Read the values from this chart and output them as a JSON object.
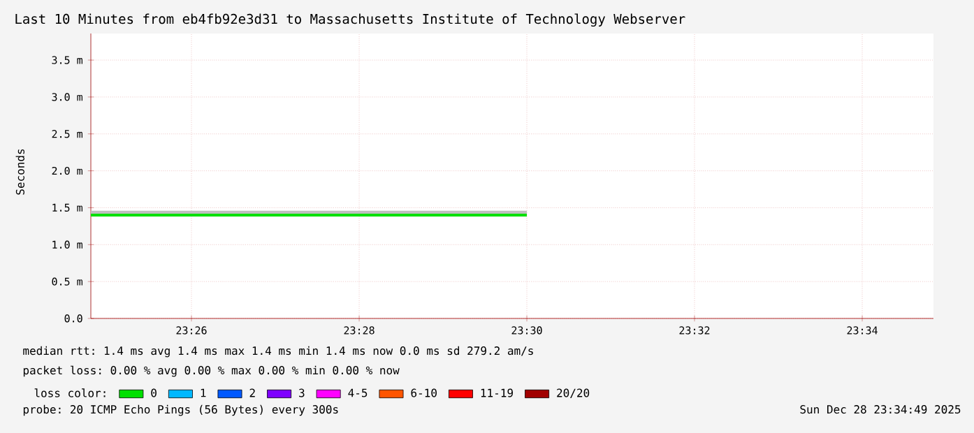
{
  "chart_data": {
    "type": "line",
    "title": "Last 10 Minutes from eb4fb92e3d31 to Massachusetts Institute of Technology Webserver",
    "ylabel": "Seconds",
    "x": [
      23.41333,
      23.5
    ],
    "series": [
      {
        "name": "0",
        "color": "#00e000",
        "values": [
          1.4,
          1.4
        ],
        "lower": [
          1.39,
          1.39
        ],
        "upper": [
          1.46,
          1.46
        ]
      },
      {
        "name": "1",
        "color": "#00b8ff",
        "values": [
          null,
          null
        ]
      },
      {
        "name": "2",
        "color": "#0059ff",
        "values": [
          null,
          null
        ]
      },
      {
        "name": "3",
        "color": "#7e00ff",
        "values": [
          null,
          null
        ]
      },
      {
        "name": "4-5",
        "color": "#ff00ff",
        "values": [
          null,
          null
        ]
      },
      {
        "name": "6-10",
        "color": "#ff5500",
        "values": [
          null,
          null
        ]
      },
      {
        "name": "11-19",
        "color": "#ff0000",
        "values": [
          null,
          null
        ]
      },
      {
        "name": "20/20",
        "color": "#a10000",
        "values": [
          null,
          null
        ]
      }
    ],
    "legend_title": "loss color:",
    "legend": "bottom",
    "xlim": [
      23.41333,
      23.58083
    ],
    "xticks": [
      {
        "value": 23.43333,
        "label": "23:26"
      },
      {
        "value": 23.46667,
        "label": "23:28"
      },
      {
        "value": 23.5,
        "label": "23:30"
      },
      {
        "value": 23.53333,
        "label": "23:32"
      },
      {
        "value": 23.56667,
        "label": "23:34"
      }
    ],
    "ylim": [
      0,
      3.86
    ],
    "yticks": [
      {
        "value": 0,
        "label": "0.0"
      },
      {
        "value": 0.5,
        "label": "0.5 m"
      },
      {
        "value": 1.0,
        "label": "1.0 m"
      },
      {
        "value": 1.5,
        "label": "1.5 m"
      },
      {
        "value": 2.0,
        "label": "2.0 m"
      },
      {
        "value": 2.5,
        "label": "2.5 m"
      },
      {
        "value": 3.0,
        "label": "3.0 m"
      },
      {
        "value": 3.5,
        "label": "3.5 m"
      }
    ],
    "grid": true,
    "annotations": [
      "median rtt:  1.4 ms avg   1.4 ms max   1.4 ms min   1.4 ms now   0.0 ms sd   279.2    am/s",
      "packet loss: 0.00 % avg   0.00 % max   0.00 % min   0.00 % now",
      "probe:       20 ICMP Echo Pings (56 Bytes) every 300s",
      "Sun Dec 28 23:34:49 2025"
    ]
  }
}
